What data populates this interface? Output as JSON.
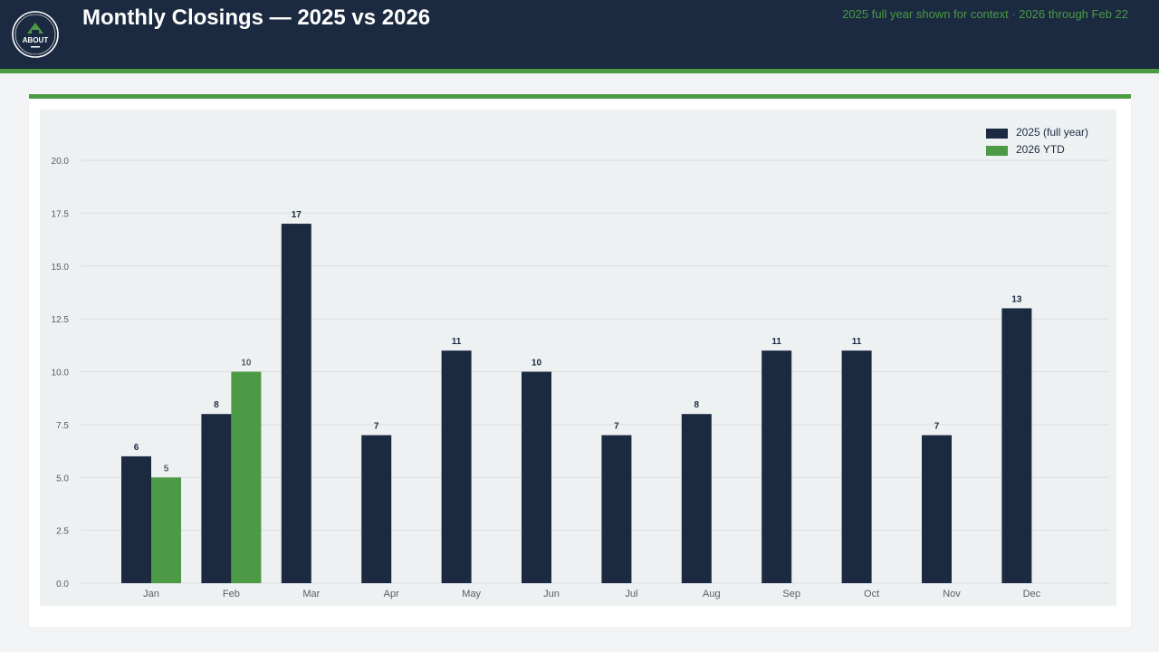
{
  "header": {
    "title": "Monthly Closings — 2025 vs 2026",
    "subtitle": "2025 full year shown for context · 2026 through Feb 22",
    "logo_icon": "house-logo-icon",
    "logo_text": "ABOUT"
  },
  "colors": {
    "header_bg": "#1b2a40",
    "accent": "#4c9a45",
    "series_2025": "#1b2a40",
    "series_2026": "#4c9a45"
  },
  "chart_data": {
    "type": "bar",
    "title": "Monthly Closings — 2025 vs 2026",
    "xlabel": "",
    "ylabel": "",
    "ylim": [
      0,
      20
    ],
    "yticks": [
      0,
      2.5,
      5,
      7.5,
      10,
      12.5,
      15,
      17.5,
      20
    ],
    "ytick_labels": [
      "0.0",
      "2.5",
      "5.0",
      "7.5",
      "10.0",
      "12.5",
      "15.0",
      "17.5",
      "20.0"
    ],
    "grid": true,
    "legend_position": "top-right",
    "categories": [
      "Jan",
      "Feb",
      "Mar",
      "Apr",
      "May",
      "Jun",
      "Jul",
      "Aug",
      "Sep",
      "Oct",
      "Nov",
      "Dec"
    ],
    "series": [
      {
        "name": "2025 (full year)",
        "color": "#1b2a40",
        "values": [
          6,
          8,
          17,
          7,
          11,
          10,
          7,
          8,
          11,
          11,
          7,
          13
        ]
      },
      {
        "name": "2026 YTD",
        "color": "#4c9a45",
        "values": [
          5,
          10,
          null,
          null,
          null,
          null,
          null,
          null,
          null,
          null,
          null,
          null
        ]
      }
    ]
  }
}
